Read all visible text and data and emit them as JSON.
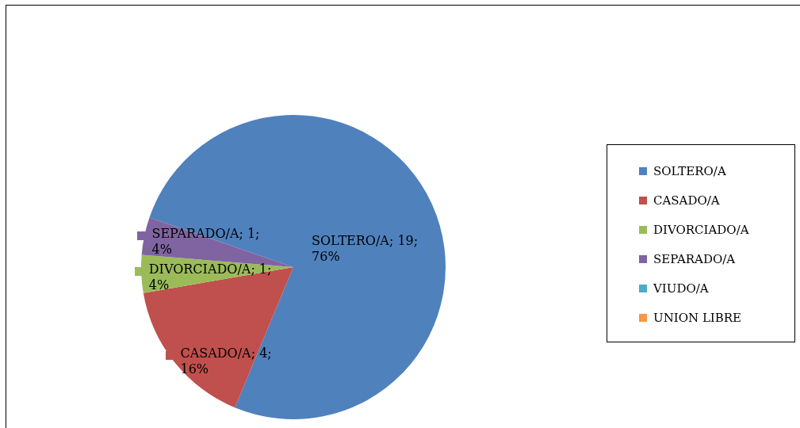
{
  "chart_data": {
    "type": "pie",
    "categories": [
      "SOLTERO/A",
      "CASADO/A",
      "DIVORCIADO/A",
      "SEPARADO/A",
      "VIUDO/A",
      "UNION LIBRE"
    ],
    "values": [
      19,
      4,
      1,
      1,
      0,
      0
    ],
    "colors": [
      "#4f81bd",
      "#c0504d",
      "#9bbb59",
      "#8064a2",
      "#4bacc6",
      "#f79646"
    ],
    "value_labels": [
      "SOLTERO/A; 19; 76%",
      "CASADO/A; 4; 16%",
      "DIVORCIADO/A; 1; 4%",
      "SEPARADO/A; 1; 4%",
      null,
      null
    ],
    "legend": "right"
  }
}
